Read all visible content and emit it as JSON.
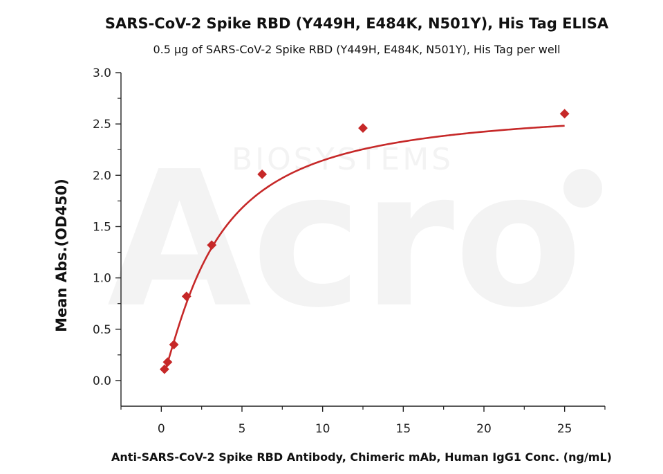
{
  "chart_data": {
    "type": "scatter",
    "title": "SARS-CoV-2 Spike RBD (Y449H, E484K, N501Y), His Tag ELISA",
    "subtitle": "0.5 μg of SARS-CoV-2 Spike RBD (Y449H, E484K, N501Y), His Tag per well",
    "xlabel": "Anti-SARS-CoV-2 Spike RBD Antibody, Chimeric mAb, Human IgG1 Conc. (ng/mL)",
    "ylabel": "Mean Abs.(OD450)",
    "xlim": [
      -2.5,
      27.5
    ],
    "ylim": [
      -0.25,
      3.0
    ],
    "x_ticks": [
      0,
      5,
      10,
      15,
      20,
      25
    ],
    "x_tick_labels": [
      "0",
      "5",
      "10",
      "15",
      "20",
      "25"
    ],
    "y_ticks": [
      0.0,
      0.5,
      1.0,
      1.5,
      2.0,
      2.5,
      3.0
    ],
    "y_tick_labels": [
      "0.0",
      "0.5",
      "1.0",
      "1.5",
      "2.0",
      "2.5",
      "3.0"
    ],
    "grid": false,
    "series": [
      {
        "marker": "diamond",
        "color": "#c62828",
        "x": [
          0.195,
          0.39,
          0.781,
          1.563,
          3.125,
          6.25,
          12.5,
          25
        ],
        "y": [
          0.11,
          0.18,
          0.35,
          0.82,
          1.32,
          2.01,
          2.46,
          2.6
        ]
      }
    ],
    "fit_curve": {
      "type": "4PL fit",
      "color": "#c62828",
      "bottom": 0.0,
      "top": 2.68,
      "ec50": 3.3,
      "hill": 1.25
    },
    "watermark": {
      "letters": "Acro",
      "text": "BIOSYSTEMS",
      "color": "#f3f3f3"
    }
  }
}
